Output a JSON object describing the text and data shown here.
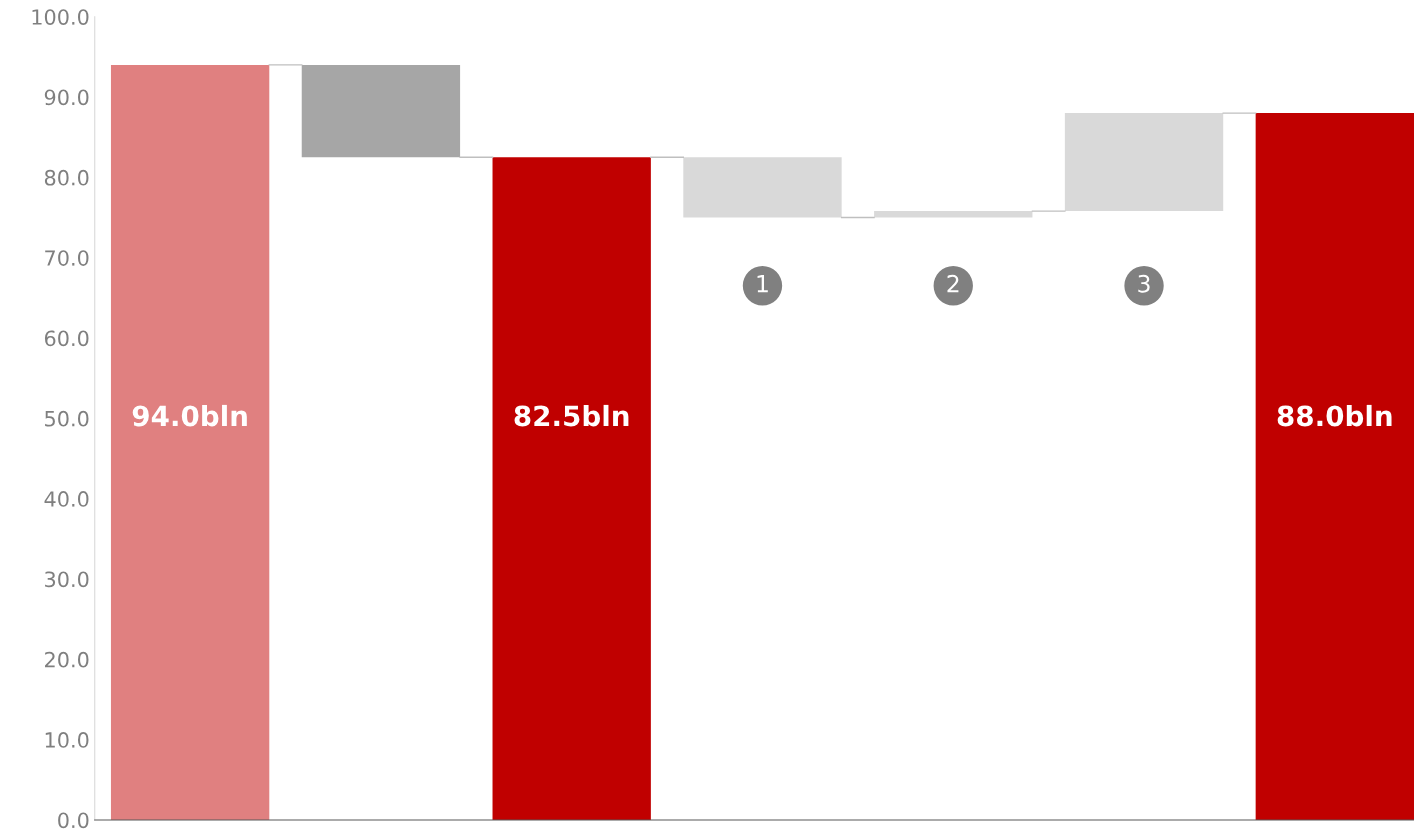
{
  "chart_data": {
    "type": "bar",
    "categories": [
      null,
      null,
      null,
      null,
      null,
      null,
      null
    ],
    "values": [
      94.0,
      11.5,
      82.5,
      7.5,
      0.8,
      12.2,
      88.0
    ],
    "base": [
      0,
      82.5,
      0,
      75.0,
      75.0,
      75.8,
      0
    ],
    "colors": [
      "#e08080",
      "#a6a6a6",
      "#c00000",
      "#d9d9d9",
      "#d9d9d9",
      "#d9d9d9",
      "#c00000"
    ],
    "value_labels": [
      "94.0bln",
      null,
      "82.5bln",
      null,
      null,
      null,
      "88.0bln"
    ],
    "annotations": [
      {
        "text": "1",
        "y": 66.5
      },
      {
        "text": "2",
        "y": 66.5
      },
      {
        "text": "3",
        "y": 66.5
      }
    ],
    "ylim": [
      0,
      100
    ],
    "yticks": [
      {
        "value": 0,
        "label": "0.0"
      },
      {
        "value": 10,
        "label": "10.0"
      },
      {
        "value": 20,
        "label": "20.0"
      },
      {
        "value": 30,
        "label": "30.0"
      },
      {
        "value": 40,
        "label": "40.0"
      },
      {
        "value": 50,
        "label": "50.0"
      },
      {
        "value": 60,
        "label": "60.0"
      },
      {
        "value": 70,
        "label": "70.0"
      },
      {
        "value": 80,
        "label": "80.0"
      },
      {
        "value": 90,
        "label": "90.0"
      },
      {
        "value": 100,
        "label": "100.0"
      }
    ],
    "grid": false,
    "legend": false
  }
}
